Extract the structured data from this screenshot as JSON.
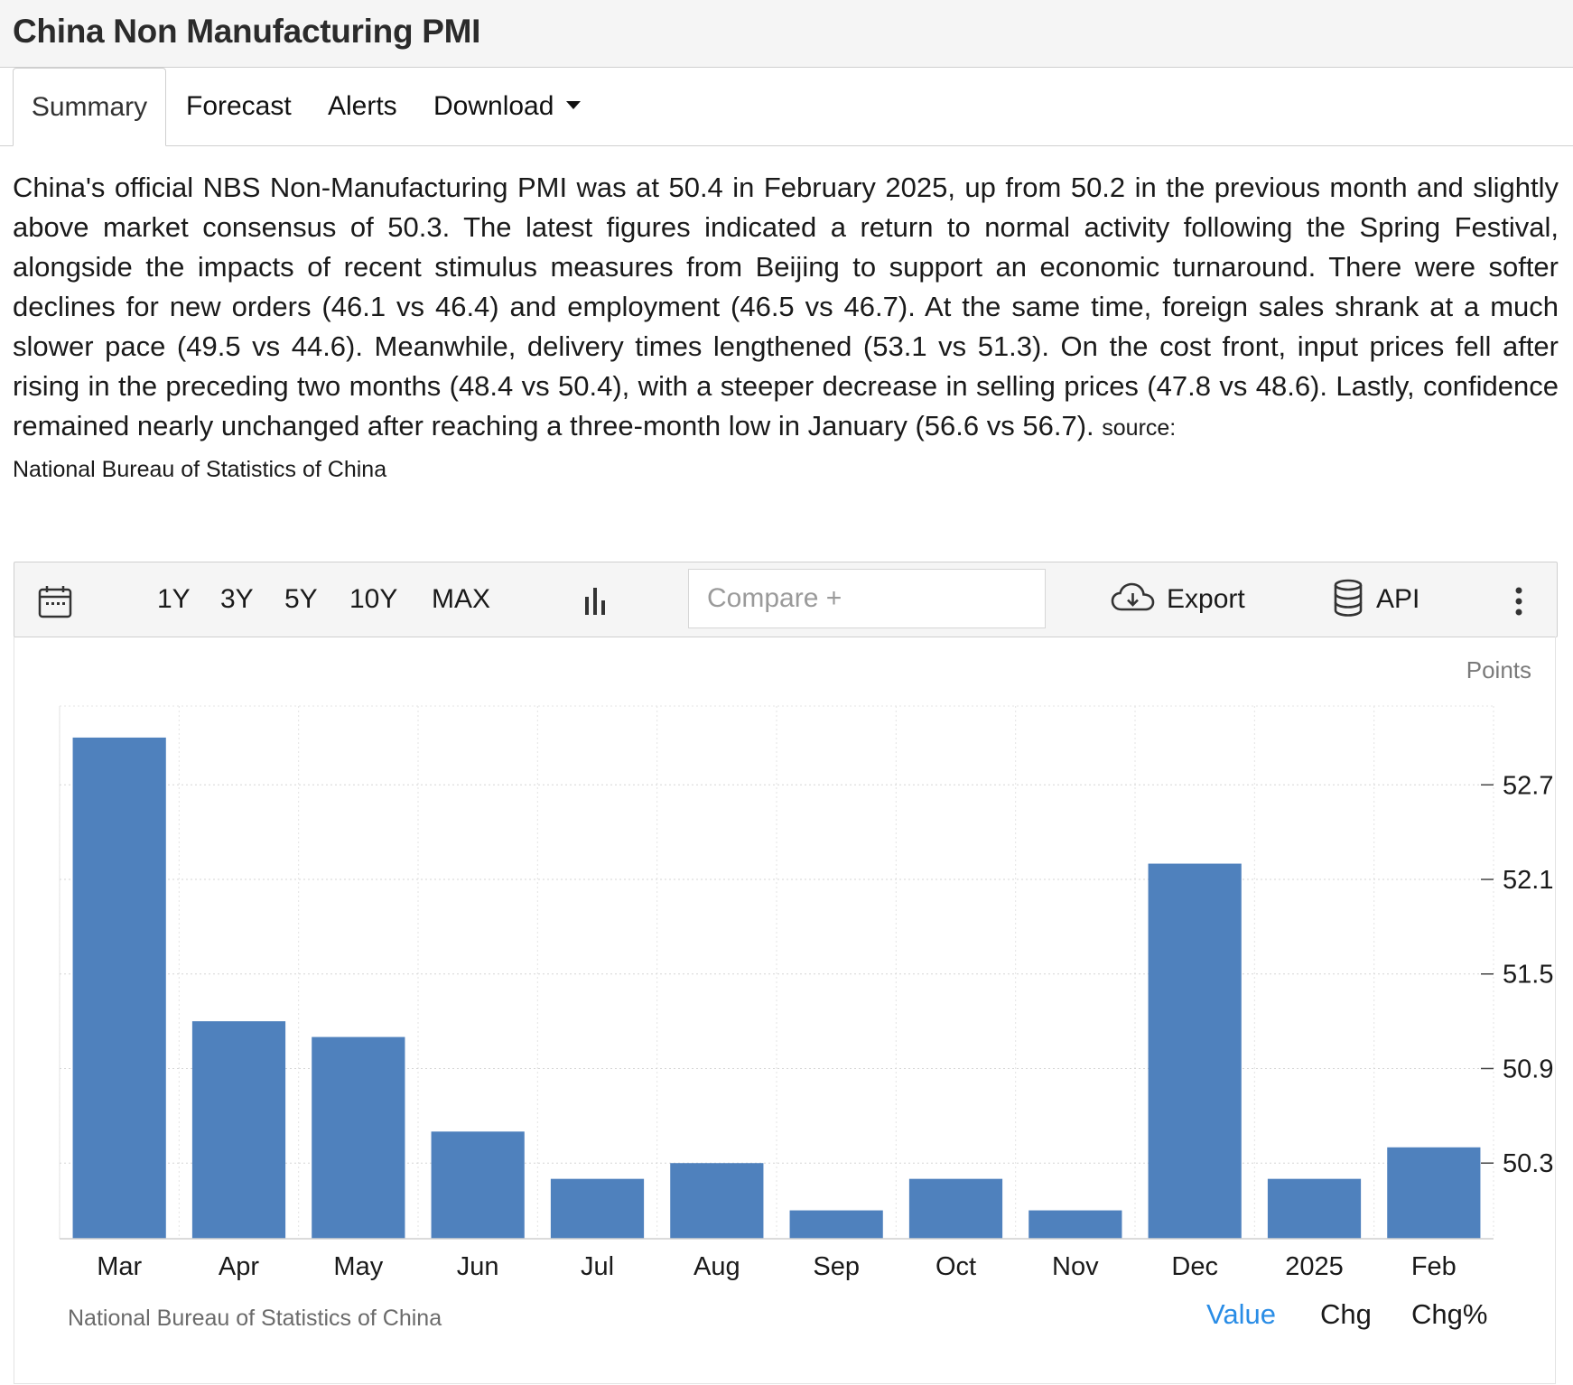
{
  "header": {
    "title": "China Non Manufacturing PMI"
  },
  "tabs": [
    {
      "label": "Summary",
      "active": true
    },
    {
      "label": "Forecast",
      "active": false
    },
    {
      "label": "Alerts",
      "active": false
    },
    {
      "label": "Download",
      "active": false
    }
  ],
  "summary": {
    "text": "China's official NBS Non-Manufacturing PMI was at 50.4 in February 2025, up from 50.2 in the previous month and slightly above market consensus of 50.3. The latest figures indicated a return to normal activity following the Spring Festival, alongside the impacts of recent stimulus measures from Beijing to support an economic turnaround. There were softer declines for new orders (46.1 vs 46.4) and employment (46.5 vs 46.7). At the same time, foreign sales shrank at a much slower pace (49.5 vs 44.6). Meanwhile, delivery times lengthened (53.1 vs 51.3). On the cost front, input prices fell after rising in the preceding two months (48.4 vs 50.4), with a steeper decrease in selling prices (47.8 vs 48.6). Lastly, confidence remained nearly unchanged after reaching a three-month low in January (56.6 vs 56.7).",
    "source_label": "source:",
    "source_name": "National Bureau of Statistics of China"
  },
  "toolbar": {
    "ranges": [
      "1Y",
      "3Y",
      "5Y",
      "10Y",
      "MAX"
    ],
    "compare_placeholder": "Compare +",
    "export_label": "Export",
    "api_label": "API"
  },
  "chart_footer": {
    "source": "National Bureau of Statistics of China",
    "value_tabs": [
      {
        "label": "Value",
        "active": true
      },
      {
        "label": "Chg",
        "active": false
      },
      {
        "label": "Chg%",
        "active": false
      }
    ]
  },
  "colors": {
    "bar": "#4f81bd",
    "accent": "#2a8de6"
  },
  "chart_data": {
    "type": "bar",
    "unit_label": "Points",
    "categories": [
      "Mar",
      "Apr",
      "May",
      "Jun",
      "Jul",
      "Aug",
      "Sep",
      "Oct",
      "Nov",
      "Dec",
      "2025",
      "Feb"
    ],
    "values": [
      53.0,
      51.2,
      51.1,
      50.5,
      50.2,
      50.3,
      50.0,
      50.2,
      50.0,
      52.2,
      50.2,
      50.4
    ],
    "yticks": [
      50.3,
      50.9,
      51.5,
      52.1,
      52.7
    ],
    "ylim": [
      49.82,
      53.2
    ],
    "y_axis_position": "right",
    "grid": true
  }
}
